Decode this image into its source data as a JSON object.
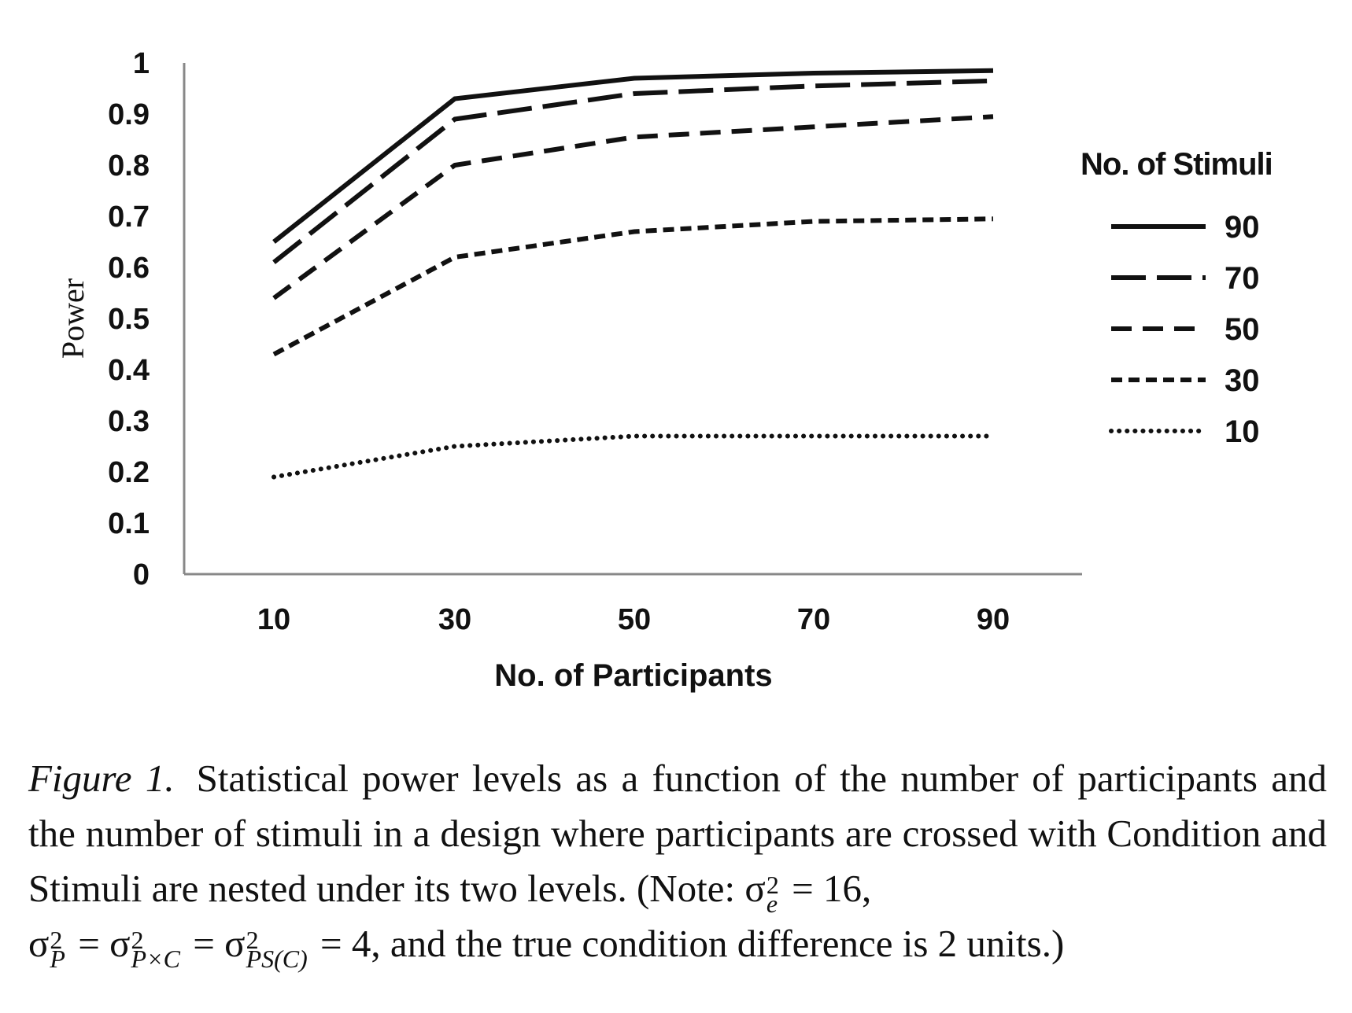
{
  "chart_data": {
    "type": "line",
    "x": [
      10,
      30,
      50,
      70,
      90
    ],
    "xlabel": "No. of Participants",
    "ylabel": "Power",
    "ylim": [
      0,
      1
    ],
    "yticks": [
      "0",
      "0.1",
      "0.2",
      "0.3",
      "0.4",
      "0.5",
      "0.6",
      "0.7",
      "0.8",
      "0.9",
      "1"
    ],
    "xticks": [
      "10",
      "30",
      "50",
      "70",
      "90"
    ],
    "legend_title": "No. of Stimuli",
    "legend_position": "right",
    "grid": false,
    "series": [
      {
        "name": "90",
        "style": "solid",
        "values": [
          0.65,
          0.93,
          0.97,
          0.98,
          0.985
        ]
      },
      {
        "name": "70",
        "style": "long-dash",
        "values": [
          0.61,
          0.89,
          0.94,
          0.955,
          0.965
        ]
      },
      {
        "name": "50",
        "style": "dash",
        "values": [
          0.54,
          0.8,
          0.855,
          0.875,
          0.895
        ]
      },
      {
        "name": "30",
        "style": "short-dash",
        "values": [
          0.43,
          0.62,
          0.67,
          0.69,
          0.695
        ]
      },
      {
        "name": "10",
        "style": "dotted",
        "values": [
          0.19,
          0.25,
          0.27,
          0.27,
          0.27
        ]
      }
    ],
    "line_color": "#111111"
  },
  "caption": {
    "figure_label": "Figure 1.",
    "text_1": "Statistical power levels as a function of the number of participants and the number of stimuli in a design where participants are crossed with Condition and Stimuli are nested under its two levels. (Note: σ",
    "sub_e": "e",
    "text_2": " = 16,",
    "sigma_1": "σ",
    "sub_p": "P",
    "eq_1": " = σ",
    "sub_pxc": "P×C",
    "eq_2": " = σ",
    "sub_psc": "PS(C)",
    "text_3": " = 4, and the true condition difference is 2 units.)",
    "sup": "2"
  }
}
